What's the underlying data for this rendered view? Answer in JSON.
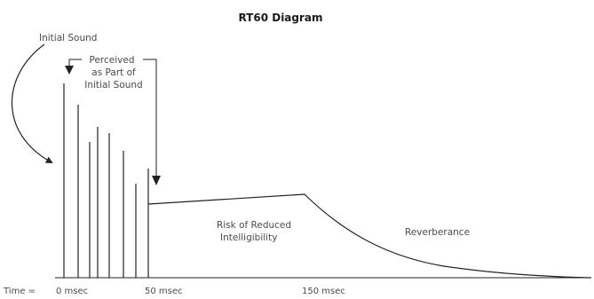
{
  "title": "RT60 Diagram",
  "labels": {
    "initial_sound": "Initial Sound",
    "perceived": [
      "Perceived",
      "as Part of",
      "Initial Sound"
    ],
    "risk": [
      "Risk of Reduced",
      "Intelligibility"
    ],
    "reverberance": "Reverberance"
  },
  "time_axis": {
    "prefix": "Time =",
    "ticks": [
      "0 msec",
      "50 msec",
      "150 msec"
    ]
  },
  "colors": {
    "line": "#222222",
    "text": "#4a4a4a"
  }
}
